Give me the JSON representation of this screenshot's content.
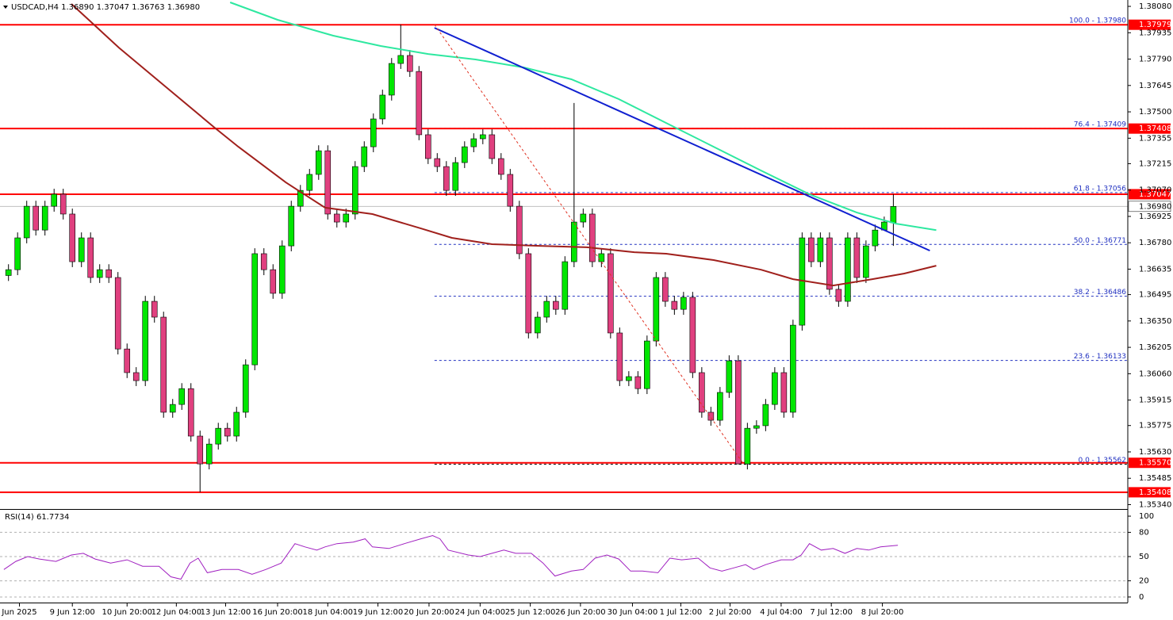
{
  "chart_data": [
    {
      "type": "candlestick",
      "title": "USDCAD,H4",
      "header_values": [
        "1.36890",
        "1.37047",
        "1.36763",
        "1.36980"
      ],
      "colors": {
        "up": "#00e600",
        "down": "#e0407f"
      },
      "open": [
        1.366,
        1.36632,
        1.36807,
        1.36981,
        1.3685,
        1.36981,
        1.37047,
        1.36938,
        1.36676,
        1.36807,
        1.36589,
        1.36632,
        1.36589,
        1.36196,
        1.36066,
        1.36022,
        1.36458,
        1.36371,
        1.35848,
        1.35891,
        1.35978,
        1.35717,
        1.35564,
        1.35673,
        1.3576,
        1.35717,
        1.35848,
        1.36109,
        1.3672,
        1.36632,
        1.36502,
        1.36763,
        1.36981,
        1.37068,
        1.37156,
        1.37286,
        1.36938,
        1.36894,
        1.36938,
        1.37199,
        1.37308,
        1.37461,
        1.37592,
        1.37766,
        1.3781,
        1.37722,
        1.37374,
        1.37243,
        1.37199,
        1.37068,
        1.37221,
        1.37308,
        1.37352,
        1.37374,
        1.37243,
        1.37156,
        1.36981,
        1.3672,
        1.36284,
        1.36371,
        1.36458,
        1.36414,
        1.36676,
        1.36894,
        1.36938,
        1.36676,
        1.3672,
        1.36284,
        1.36022,
        1.36044,
        1.35978,
        1.3624,
        1.36589,
        1.36458,
        1.36414,
        1.3648,
        1.36066,
        1.35848,
        1.35804,
        1.35957,
        1.36131,
        1.35564,
        1.3576,
        1.35774,
        1.35891,
        1.36066,
        1.35848,
        1.36327,
        1.36807,
        1.36676,
        1.36807,
        1.36524,
        1.36458,
        1.36807,
        1.36589,
        1.36763,
        1.3685,
        1.3689
      ],
      "high": [
        1.36662,
        1.36837,
        1.37011,
        1.37011,
        1.37011,
        1.37077,
        1.37077,
        1.36968,
        1.36837,
        1.36837,
        1.36662,
        1.36662,
        1.36619,
        1.36226,
        1.36096,
        1.36488,
        1.36488,
        1.36401,
        1.35921,
        1.36008,
        1.36008,
        1.35747,
        1.35703,
        1.3579,
        1.3579,
        1.35878,
        1.36139,
        1.3675,
        1.3675,
        1.36662,
        1.36793,
        1.37011,
        1.37098,
        1.37186,
        1.37316,
        1.37316,
        1.36968,
        1.36968,
        1.37229,
        1.37338,
        1.37491,
        1.37622,
        1.37796,
        1.3798,
        1.3784,
        1.37752,
        1.37404,
        1.37273,
        1.37229,
        1.37251,
        1.37338,
        1.37382,
        1.37404,
        1.37404,
        1.37273,
        1.37186,
        1.37011,
        1.3675,
        1.36401,
        1.36488,
        1.36488,
        1.36706,
        1.37549,
        1.36968,
        1.36968,
        1.3675,
        1.3675,
        1.36314,
        1.36074,
        1.36074,
        1.3627,
        1.36619,
        1.36619,
        1.36488,
        1.3651,
        1.3651,
        1.36096,
        1.35878,
        1.35987,
        1.36161,
        1.36161,
        1.3579,
        1.35804,
        1.35921,
        1.36096,
        1.36096,
        1.36357,
        1.36837,
        1.36837,
        1.36837,
        1.36837,
        1.36554,
        1.36837,
        1.36837,
        1.36793,
        1.3688,
        1.36924,
        1.37047
      ],
      "low": [
        1.3657,
        1.36602,
        1.36777,
        1.3682,
        1.3682,
        1.36951,
        1.36908,
        1.36646,
        1.36646,
        1.36559,
        1.36559,
        1.36559,
        1.36166,
        1.36036,
        1.35992,
        1.35992,
        1.36341,
        1.35818,
        1.35818,
        1.35861,
        1.35687,
        1.35408,
        1.35534,
        1.35643,
        1.35687,
        1.35687,
        1.35818,
        1.36079,
        1.36602,
        1.36472,
        1.36472,
        1.36733,
        1.36951,
        1.37038,
        1.37126,
        1.36908,
        1.36864,
        1.36864,
        1.36908,
        1.37169,
        1.37278,
        1.37431,
        1.37562,
        1.37736,
        1.37692,
        1.37344,
        1.37213,
        1.37169,
        1.37038,
        1.37038,
        1.37191,
        1.37278,
        1.37322,
        1.37213,
        1.37126,
        1.36951,
        1.3669,
        1.36254,
        1.36254,
        1.36341,
        1.36384,
        1.36384,
        1.36646,
        1.36864,
        1.36646,
        1.36646,
        1.36254,
        1.35992,
        1.35992,
        1.35948,
        1.35948,
        1.3621,
        1.36428,
        1.36384,
        1.36384,
        1.36036,
        1.35818,
        1.35774,
        1.35774,
        1.35927,
        1.35562,
        1.35534,
        1.3573,
        1.35744,
        1.35861,
        1.35818,
        1.35818,
        1.36297,
        1.36646,
        1.36646,
        1.36494,
        1.36428,
        1.36428,
        1.36559,
        1.36559,
        1.36733,
        1.36864,
        1.36763
      ],
      "close": [
        1.36632,
        1.36807,
        1.36981,
        1.3685,
        1.36981,
        1.37047,
        1.36938,
        1.36676,
        1.36807,
        1.36589,
        1.36632,
        1.36589,
        1.36196,
        1.36066,
        1.36022,
        1.36458,
        1.36371,
        1.35848,
        1.35891,
        1.35978,
        1.35717,
        1.35564,
        1.35673,
        1.3576,
        1.35717,
        1.35848,
        1.36109,
        1.3672,
        1.36632,
        1.36502,
        1.36763,
        1.36981,
        1.37068,
        1.37156,
        1.37286,
        1.36938,
        1.36894,
        1.36938,
        1.37199,
        1.37308,
        1.37461,
        1.37592,
        1.37766,
        1.3781,
        1.37722,
        1.37374,
        1.37243,
        1.37199,
        1.37068,
        1.37221,
        1.37308,
        1.37352,
        1.37374,
        1.37243,
        1.37156,
        1.36981,
        1.3672,
        1.36284,
        1.36371,
        1.36458,
        1.36414,
        1.36676,
        1.36894,
        1.36938,
        1.36676,
        1.3672,
        1.36284,
        1.36022,
        1.36044,
        1.35978,
        1.3624,
        1.36589,
        1.36458,
        1.36414,
        1.3648,
        1.36066,
        1.35848,
        1.35804,
        1.35957,
        1.36131,
        1.35564,
        1.3576,
        1.35774,
        1.35891,
        1.36066,
        1.35848,
        1.36327,
        1.36807,
        1.36676,
        1.36807,
        1.36524,
        1.36458,
        1.36807,
        1.36589,
        1.36763,
        1.3685,
        1.36894,
        1.3698
      ],
      "xlim": [
        -0.93,
        122.7
      ],
      "ylim": [
        1.35316,
        1.38115
      ],
      "yticks": [
        {
          "value": 1.3808,
          "label": "1.38080"
        },
        1.37935,
        {
          "value": 1.3779,
          "label": "1.37790"
        },
        1.37645,
        {
          "value": 1.375,
          "label": "1.37500"
        },
        1.37355,
        1.37215,
        {
          "value": 1.3707,
          "label": "1.37070"
        },
        1.36925,
        {
          "value": 1.3678,
          "label": "1.36780"
        },
        1.36635,
        1.36495,
        {
          "value": 1.3635,
          "label": "1.36350"
        },
        1.36205,
        {
          "value": 1.3606,
          "label": "1.36060"
        },
        1.35915,
        1.35775,
        {
          "value": 1.3563,
          "label": "1.35630"
        },
        1.35485,
        {
          "value": 1.3534,
          "label": "1.35340"
        }
      ],
      "xticks": [
        {
          "value": 1.2,
          "label": "Jun 2025"
        },
        {
          "value": 7,
          "label": "9 Jun 12:00"
        },
        {
          "value": 13,
          "label": "10 Jun 20:00"
        },
        {
          "value": 18.4,
          "label": "12 Jun 04:00"
        },
        {
          "value": 23.8,
          "label": "13 Jun 12:00"
        },
        {
          "value": 29.5,
          "label": "16 Jun 20:00"
        },
        {
          "value": 35,
          "label": "18 Jun 04:00"
        },
        {
          "value": 40.5,
          "label": "19 Jun 12:00"
        },
        {
          "value": 46.1,
          "label": "20 Jun 20:00"
        },
        {
          "value": 51.7,
          "label": "24 Jun 04:00"
        },
        {
          "value": 57.2,
          "label": "25 Jun 12:00"
        },
        {
          "value": 62.7,
          "label": "26 Jun 20:00"
        },
        {
          "value": 68.4,
          "label": "30 Jun 04:00"
        },
        {
          "value": 73.7,
          "label": "1 Jul 12:00"
        },
        {
          "value": 79.1,
          "label": "2 Jul 20:00"
        },
        {
          "value": 84.7,
          "label": "4 Jul 04:00"
        },
        {
          "value": 90.2,
          "label": "7 Jul 12:00"
        },
        {
          "value": 95.8,
          "label": "8 Jul 20:00"
        }
      ],
      "lines": [
        {
          "color": "#2ee8a0",
          "x": [
            24.3,
            29.5,
            35.6,
            40.8,
            46.0,
            51.2,
            56.5,
            61.7,
            66.9,
            72.1,
            77.3,
            82.5,
            87.8,
            93.0,
            97.3,
            101.7
          ],
          "values": [
            1.38102,
            1.38006,
            1.37919,
            1.37862,
            1.37818,
            1.37788,
            1.37744,
            1.37679,
            1.3757,
            1.37439,
            1.37308,
            1.37177,
            1.37047,
            1.36946,
            1.36885,
            1.3685
          ]
        },
        {
          "color": "#a0201c",
          "x": [
            6.9,
            12.1,
            17.3,
            22.5,
            25.2,
            30.4,
            34.7,
            39.9,
            45.2,
            48.6,
            53.0,
            58.2,
            63.4,
            68.6,
            72.1,
            77.3,
            82.5,
            86.0,
            90.4,
            94.7,
            98.2,
            101.7
          ],
          "values": [
            1.38093,
            1.37853,
            1.37635,
            1.37417,
            1.37308,
            1.37112,
            1.36973,
            1.36938,
            1.36859,
            1.36807,
            1.36772,
            1.36763,
            1.36755,
            1.36728,
            1.3672,
            1.36685,
            1.36632,
            1.3658,
            1.36545,
            1.3658,
            1.36611,
            1.36654
          ]
        },
        {
          "color": "#1020d0",
          "x": [
            46.7,
            101.0
          ],
          "values": [
            1.37962,
            1.36737
          ]
        },
        {
          "color": "#e03020",
          "dashed": true,
          "x": [
            46.7,
            80.6
          ],
          "values": [
            1.3798,
            1.35562
          ]
        }
      ],
      "level_color": "#ff0000",
      "levels": [
        {
          "value": 1.37979,
          "label": "1.37979"
        },
        {
          "value": 1.37408,
          "label": "1.37408"
        },
        {
          "value": 1.37047,
          "label": "1.37047"
        },
        {
          "value": 1.3557,
          "label": "1.35570"
        },
        {
          "value": 1.35408,
          "label": "1.35408"
        }
      ],
      "current": {
        "value": 1.3698,
        "label": "1.36980"
      },
      "fib_color": "#2030c0",
      "fib_start": 46.7,
      "fib": [
        {
          "value": 1.3798,
          "label": "100.0 - 1.37980"
        },
        {
          "value": 1.37409,
          "label": "76.4 - 1.37409"
        },
        {
          "value": 1.37056,
          "label": "61.8 - 1.37056"
        },
        {
          "value": 1.36771,
          "label": "50.0 - 1.36771"
        },
        {
          "value": 1.36486,
          "label": "38.2 - 1.36486"
        },
        {
          "value": 1.36133,
          "label": "23.6 - 1.36133"
        },
        {
          "value": 1.35562,
          "label": "0.0 - 1.35562"
        }
      ]
    },
    {
      "type": "line",
      "title": "RSI(14) 61.7734",
      "color": "#a020c0",
      "xlim": [
        -0.93,
        122.7
      ],
      "ylim": [
        -6.9,
        106.9
      ],
      "yticks": [
        100,
        80,
        50,
        20,
        0
      ],
      "x": [
        -0.5,
        0.8,
        2.1,
        3.4,
        5.2,
        6.9,
        8.2,
        9.5,
        11.2,
        13.0,
        14.7,
        16.5,
        17.8,
        18.9,
        19.9,
        20.8,
        21.8,
        23.4,
        25.2,
        26.7,
        28.2,
        29.9,
        31.4,
        32.5,
        33.8,
        34.7,
        36.0,
        37.8,
        39.1,
        39.9,
        41.7,
        43.4,
        45.2,
        46.5,
        47.3,
        48.2,
        50.4,
        51.7,
        53.0,
        54.3,
        55.6,
        57.3,
        58.6,
        59.9,
        61.7,
        63.0,
        64.3,
        65.6,
        66.9,
        68.2,
        69.5,
        71.2,
        72.5,
        73.8,
        75.6,
        76.9,
        78.2,
        79.5,
        80.8,
        81.7,
        83.0,
        84.7,
        86.0,
        86.9,
        87.8,
        89.1,
        90.4,
        91.7,
        93.0,
        94.3,
        95.6,
        97.5
      ],
      "values": [
        34,
        44,
        50,
        47,
        44,
        52,
        54,
        47,
        42,
        46,
        38,
        38,
        25,
        22,
        42,
        48,
        30,
        34,
        34,
        28,
        34,
        42,
        66,
        62,
        58,
        62,
        66,
        68,
        72,
        62,
        60,
        66,
        72,
        76,
        72,
        58,
        52,
        50,
        54,
        58,
        54,
        54,
        42,
        26,
        32,
        34,
        48,
        52,
        47,
        32,
        32,
        30,
        48,
        46,
        48,
        36,
        32,
        36,
        40,
        34,
        40,
        46,
        46,
        52,
        66,
        58,
        60,
        54,
        60,
        58,
        62,
        64
      ]
    }
  ]
}
